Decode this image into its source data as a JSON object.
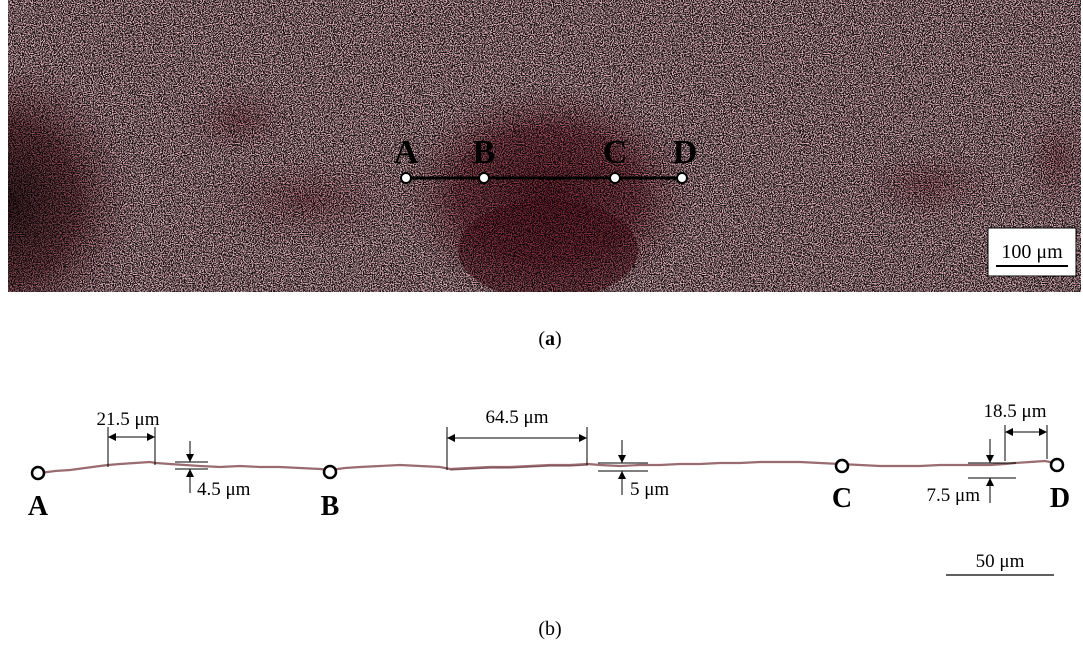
{
  "panel_a": {
    "points": [
      "A",
      "B",
      "C",
      "D"
    ],
    "scale_bar": "100 μm",
    "caption_label": "a"
  },
  "panel_b": {
    "points": [
      "A",
      "B",
      "C",
      "D"
    ],
    "dimensions": {
      "width_1": "21.5 μm",
      "height_1": "4.5 μm",
      "width_2": "64.5 μm",
      "height_2": "5 μm",
      "width_3": "18.5 μm",
      "height_3": "7.5 μm"
    },
    "scale_bar": "50 μm",
    "caption_label": "b"
  },
  "colors": {
    "micrograph_base": "#d9a6b0",
    "dark_region": "#8a2b38",
    "profile_line": "#9a6b70"
  }
}
